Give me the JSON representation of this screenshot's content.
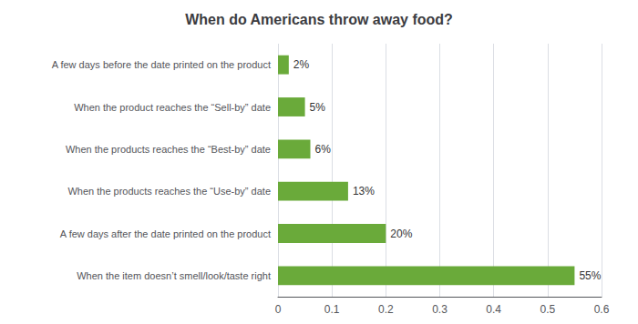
{
  "chart_data": {
    "type": "bar",
    "orientation": "horizontal",
    "title": "When do Americans throw away food?",
    "categories": [
      "When the item doesn’t smell/look/taste right",
      "A few days after the date printed on the product",
      "When the products reaches the “Use-by” date",
      "When the products reaches the “Best-by” date",
      "When the product reaches the “Sell-by” date",
      "A few days before the date printed on the product"
    ],
    "values": [
      0.55,
      0.2,
      0.13,
      0.06,
      0.05,
      0.02
    ],
    "value_labels": [
      "55%",
      "20%",
      "13%",
      "6%",
      "5%",
      "2%"
    ],
    "data_labels": true,
    "color": "#6aaa3a",
    "xlim": [
      0,
      0.6
    ],
    "xticks": [
      0,
      0.1,
      0.2,
      0.3,
      0.4,
      0.5,
      0.6
    ],
    "grid": true
  }
}
